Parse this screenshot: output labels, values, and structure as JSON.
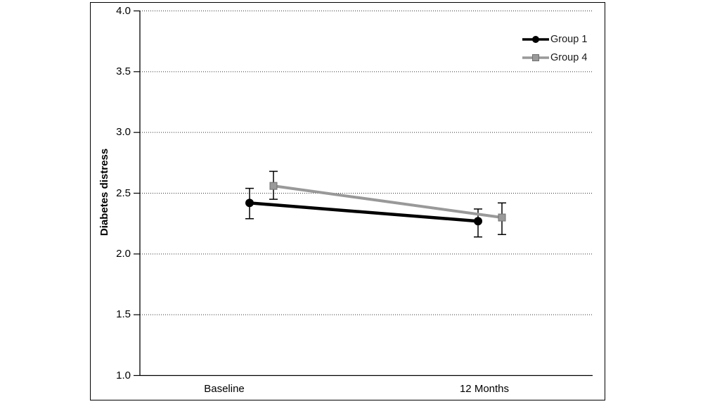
{
  "chart_data": {
    "type": "line",
    "ylabel": "Diabetes distress",
    "xlabel": "",
    "categories": [
      "Baseline",
      "12 Months"
    ],
    "ylim": [
      1.0,
      4.0
    ],
    "yticks": [
      4.0,
      3.5,
      3.0,
      2.5,
      2.0,
      1.5,
      1.0
    ],
    "ytick_labels": [
      "4.0",
      "3.5",
      "3.0",
      "2.5",
      "2.0",
      "1.5",
      "1.0"
    ],
    "grid": {
      "horizontal": true,
      "style": "dotted"
    },
    "legend_position": "top-right-inside",
    "error_bar_color": "#000000",
    "axis_color": "#000000",
    "series": [
      {
        "name": "Group 1",
        "color": "#000000",
        "marker": "circle",
        "marker_fill": "#000000",
        "marker_stroke": "#000000",
        "values": [
          2.42,
          2.27
        ],
        "error_low": [
          2.29,
          2.14
        ],
        "error_high": [
          2.54,
          2.37
        ]
      },
      {
        "name": "Group 4",
        "color": "#999999",
        "marker": "square",
        "marker_fill": "#9a9a9a",
        "marker_stroke": "#707070",
        "values": [
          2.56,
          2.3
        ],
        "error_low": [
          2.45,
          2.16
        ],
        "error_high": [
          2.68,
          2.42
        ]
      }
    ]
  }
}
